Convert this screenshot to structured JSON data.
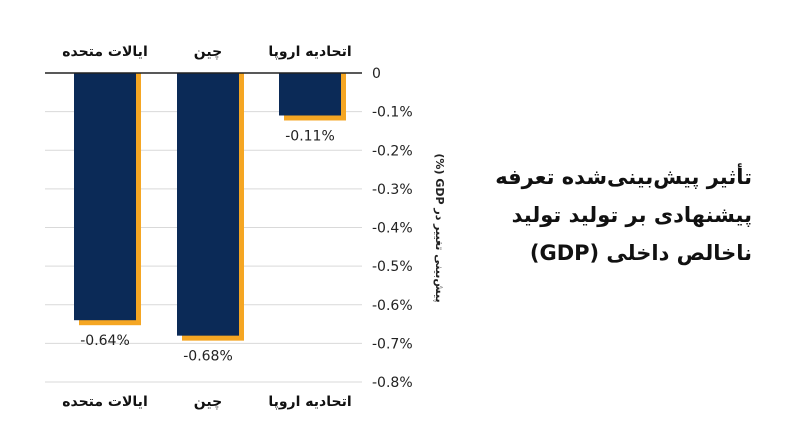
{
  "chart_data": {
    "type": "bar",
    "title": "تأثیر پیش‌بینی‌شده تعرفه پیشنهادی بر تولید تولید ناخالص داخلی (GDP)",
    "ylabel": "پیش‌بینی تغییر در GDP (%)",
    "categories": [
      "ایالات متحده",
      "چین",
      "اتحادیه اروپا"
    ],
    "values": [
      -0.64,
      -0.68,
      -0.11
    ],
    "data_labels": [
      "-0.64%",
      "-0.68%",
      "-0.11%"
    ],
    "ylim": [
      -0.8,
      0
    ],
    "yticks": [
      {
        "value": 0,
        "label": "0"
      },
      {
        "value": -0.1,
        "label": "-0.1%"
      },
      {
        "value": -0.2,
        "label": "-0.2%"
      },
      {
        "value": -0.3,
        "label": "-0.3%"
      },
      {
        "value": -0.4,
        "label": "-0.4%"
      },
      {
        "value": -0.5,
        "label": "-0.5%"
      },
      {
        "value": -0.6,
        "label": "-0.6%"
      },
      {
        "value": -0.7,
        "label": "-0.7%"
      },
      {
        "value": -0.8,
        "label": "-0.8%"
      }
    ],
    "category_labels_top": true,
    "category_labels_bottom": true,
    "grid": true,
    "bar_color": "#0b2a57",
    "shadow_color": "#f5a623",
    "grid_color": "#d9d9d9"
  }
}
